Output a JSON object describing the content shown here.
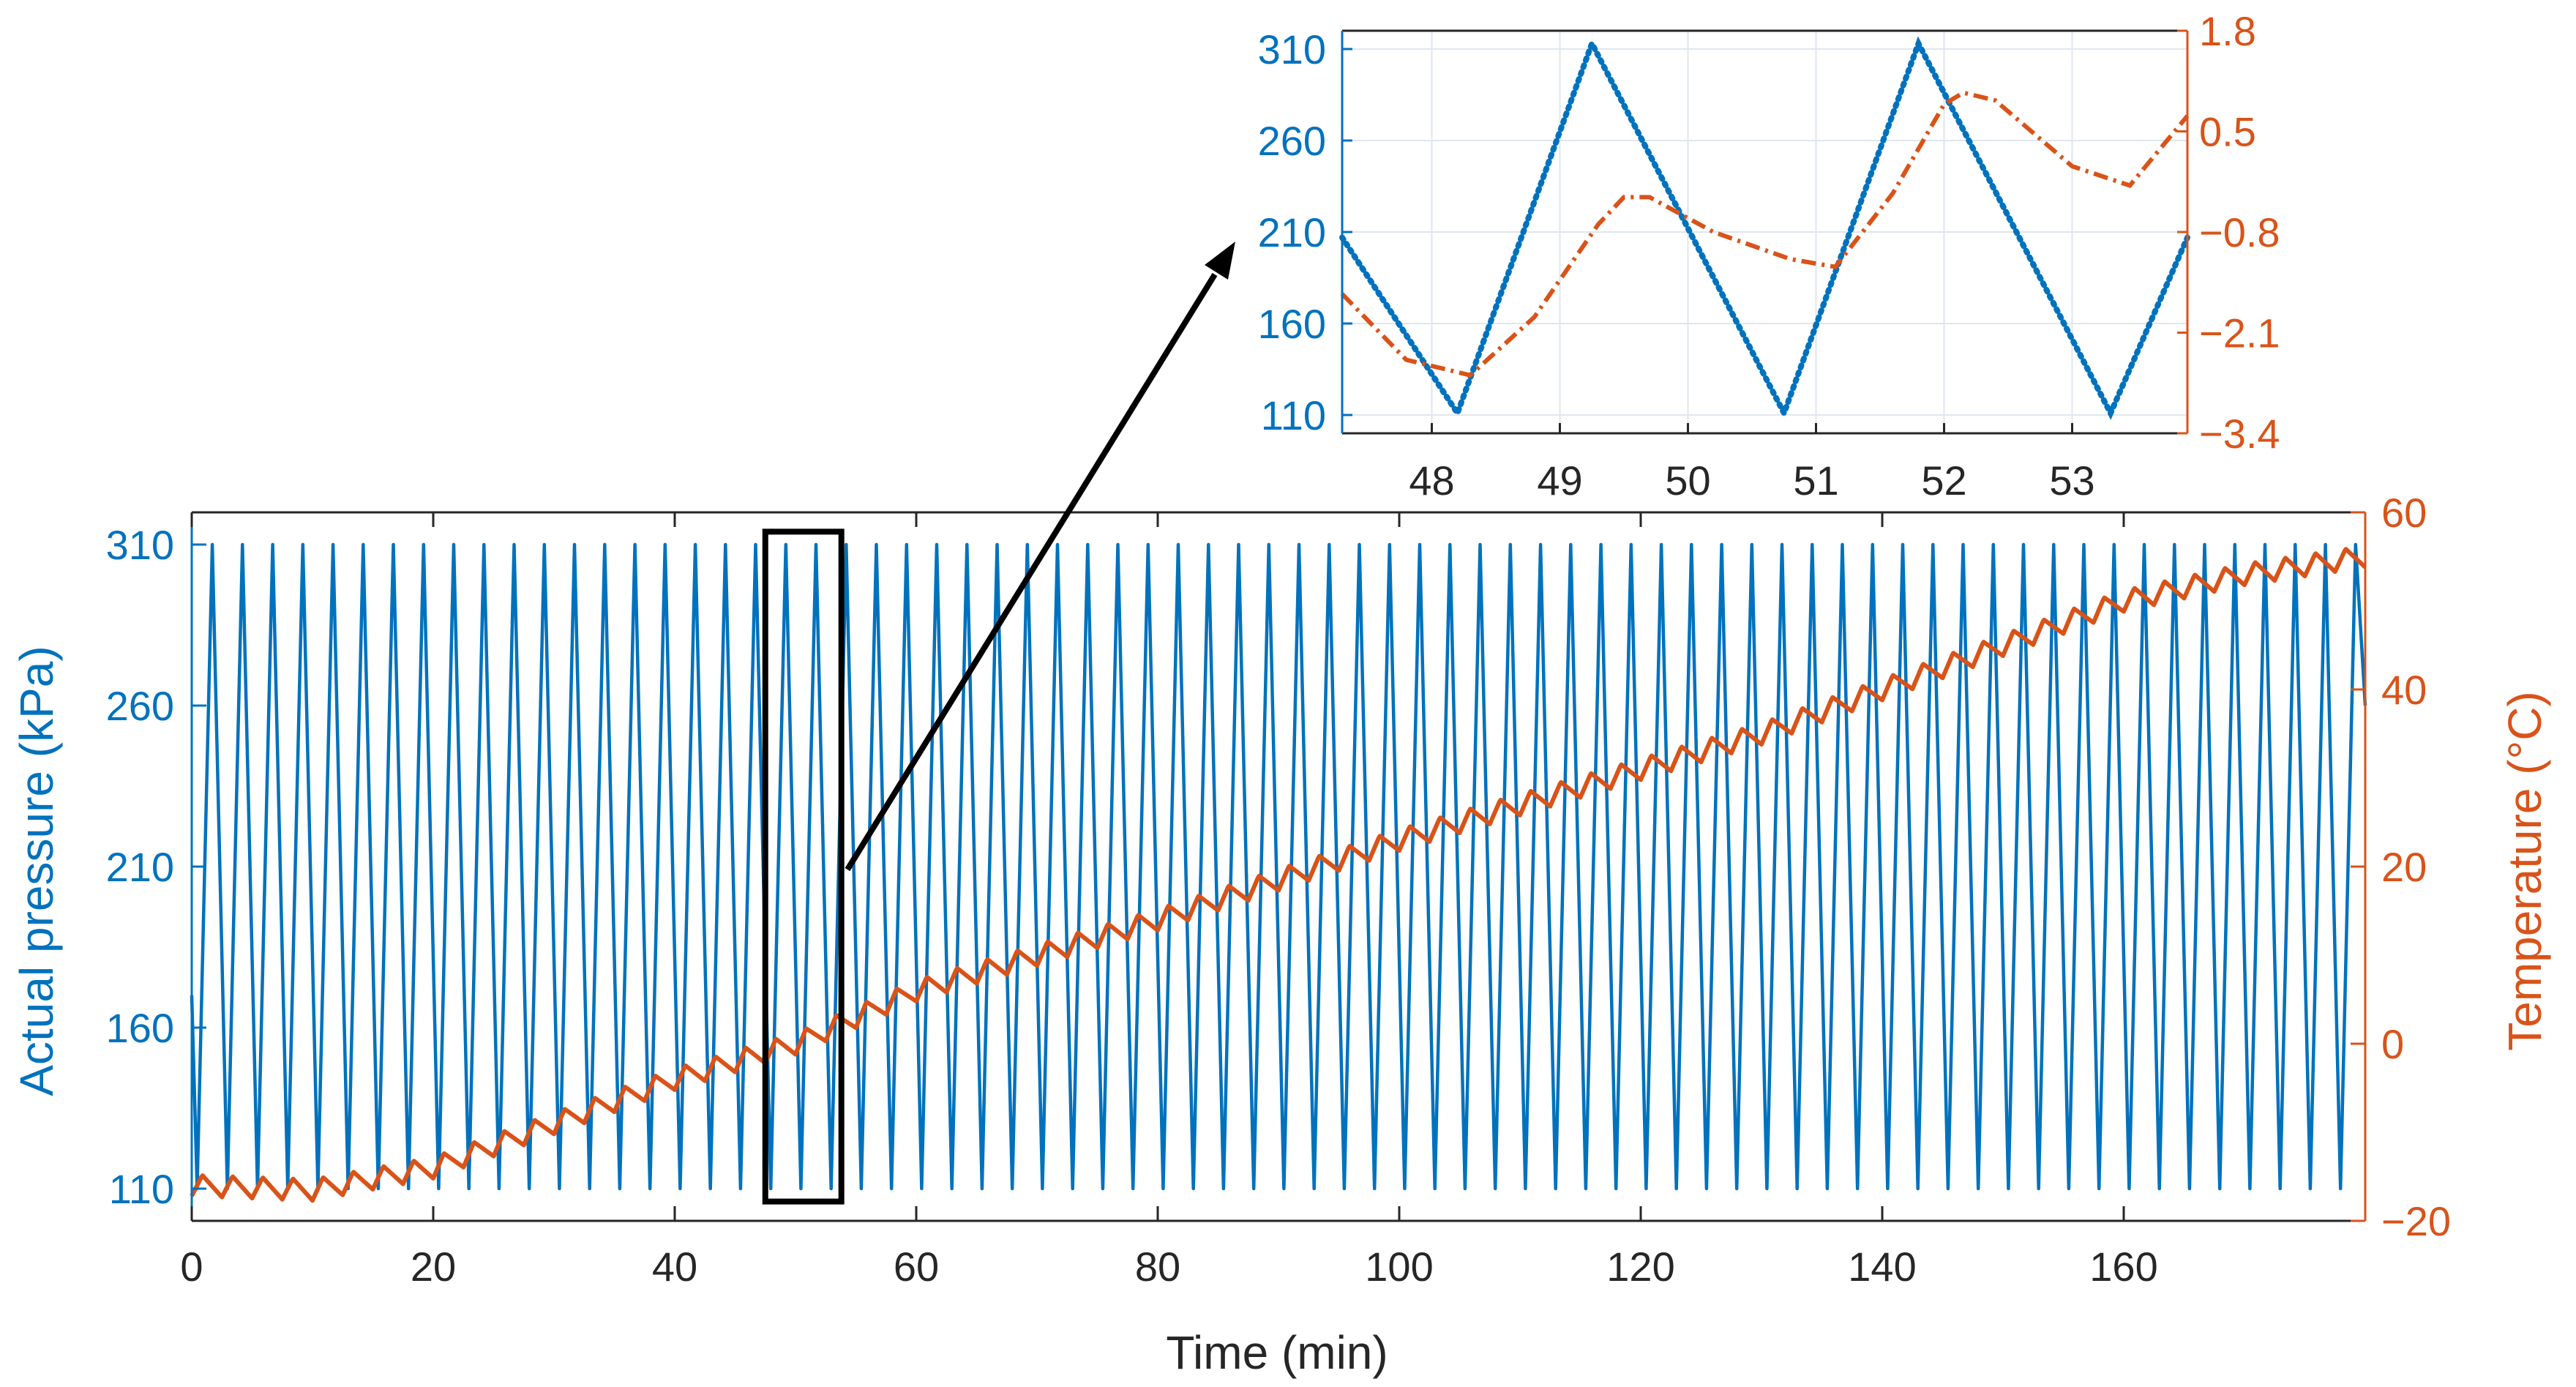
{
  "colors": {
    "pressure": "#0072BD",
    "temperature": "#D95319",
    "axis": "#262626",
    "grid": "#DFE6EE",
    "callout": "#000000"
  },
  "chart_data": [
    {
      "id": "main",
      "type": "line",
      "title": "",
      "xlabel": "Time (min)",
      "ylabel_left": "Actual pressure (kPa)",
      "ylabel_right": "Temperature (°C)",
      "xlim": [
        0,
        180
      ],
      "ylim_left": [
        100,
        320
      ],
      "ylim_right": [
        -20,
        60
      ],
      "xticks": [
        "0",
        "20",
        "40",
        "60",
        "80",
        "100",
        "120",
        "140",
        "160"
      ],
      "xtick_values": [
        0,
        20,
        40,
        60,
        80,
        100,
        120,
        140,
        160
      ],
      "yticks_left": [
        "110",
        "160",
        "210",
        "260",
        "310"
      ],
      "ytick_values_left": [
        110,
        160,
        210,
        260,
        310
      ],
      "yticks_right": [
        "−20",
        "0",
        "20",
        "40",
        "60"
      ],
      "ytick_values_right": [
        -20,
        0,
        20,
        40,
        60
      ],
      "grid": false,
      "series": [
        {
          "name": "Actual pressure",
          "axis": "left",
          "style": "solid",
          "pattern": "triangle wave 110–310 kPa, period ≈ 2.5 min",
          "min": 110,
          "max": 310,
          "period_min": 2.5,
          "first_peak_min": 1.7
        },
        {
          "name": "Temperature",
          "axis": "right",
          "style": "solid",
          "points": [
            [
              0,
              -16
            ],
            [
              10,
              -16.5
            ],
            [
              20,
              -14
            ],
            [
              30,
              -9
            ],
            [
              40,
              -4
            ],
            [
              50,
              0
            ],
            [
              60,
              6
            ],
            [
              70,
              10
            ],
            [
              80,
              14
            ],
            [
              90,
              18.5
            ],
            [
              100,
              23
            ],
            [
              110,
              27
            ],
            [
              120,
              31
            ],
            [
              130,
              35
            ],
            [
              140,
              40
            ],
            [
              150,
              45
            ],
            [
              160,
              50
            ],
            [
              170,
              53
            ],
            [
              180,
              55
            ]
          ],
          "ripple_amplitude": 1.2
        }
      ],
      "annotations": [
        {
          "type": "zoom-box",
          "x_range": [
            47.5,
            53.8
          ],
          "y_range": [
            106,
            314
          ]
        }
      ]
    },
    {
      "id": "inset",
      "type": "line",
      "title": "",
      "xlim": [
        47.3,
        53.9
      ],
      "ylim_left": [
        100,
        320
      ],
      "ylim_right": [
        -3.4,
        1.8
      ],
      "xticks": [
        "48",
        "49",
        "50",
        "51",
        "52",
        "53"
      ],
      "xtick_values": [
        48,
        49,
        50,
        51,
        52,
        53
      ],
      "yticks_left": [
        "110",
        "160",
        "210",
        "260",
        "310"
      ],
      "ytick_values_left": [
        110,
        160,
        210,
        260,
        310
      ],
      "yticks_right": [
        "−3.4",
        "−2.1",
        "−0.8",
        "0.5",
        "1.8"
      ],
      "ytick_values_right": [
        -3.4,
        -2.1,
        -0.8,
        0.5,
        1.8
      ],
      "grid": true,
      "series": [
        {
          "name": "Actual pressure",
          "axis": "left",
          "style": "dotted",
          "points": [
            [
              47.3,
              207
            ],
            [
              48.2,
              111
            ],
            [
              49.25,
              313
            ],
            [
              50.75,
              111
            ],
            [
              51.8,
              313
            ],
            [
              53.3,
              111
            ],
            [
              53.9,
              207
            ]
          ]
        },
        {
          "name": "Temperature",
          "axis": "right",
          "style": "dash-dot",
          "points": [
            [
              47.3,
              -1.6
            ],
            [
              47.8,
              -2.45
            ],
            [
              48.3,
              -2.65
            ],
            [
              48.8,
              -1.9
            ],
            [
              49.3,
              -0.7
            ],
            [
              49.5,
              -0.35
            ],
            [
              49.7,
              -0.35
            ],
            [
              50.2,
              -0.8
            ],
            [
              50.8,
              -1.15
            ],
            [
              51.15,
              -1.25
            ],
            [
              51.6,
              -0.3
            ],
            [
              52.0,
              0.85
            ],
            [
              52.15,
              1.0
            ],
            [
              52.4,
              0.9
            ],
            [
              53.0,
              0.05
            ],
            [
              53.45,
              -0.2
            ],
            [
              53.9,
              0.7
            ]
          ]
        }
      ]
    }
  ]
}
